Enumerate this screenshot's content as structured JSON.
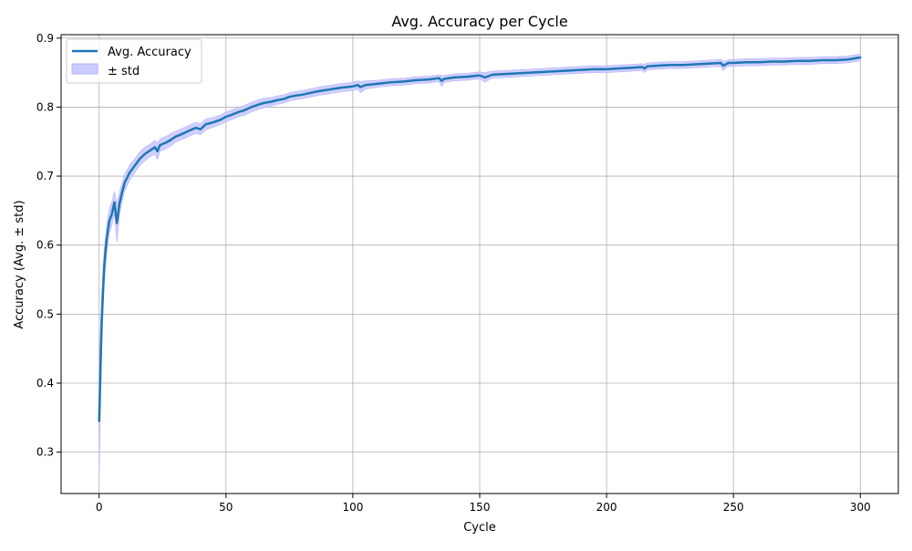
{
  "chart_data": {
    "type": "line",
    "title": "Avg. Accuracy per Cycle",
    "xlabel": "Cycle",
    "ylabel": "Accuracy (Avg. ± std)",
    "xlim": [
      -15,
      315
    ],
    "ylim": [
      0.24,
      0.905
    ],
    "xticks": [
      0,
      50,
      100,
      150,
      200,
      250,
      300
    ],
    "yticks": [
      0.3,
      0.4,
      0.5,
      0.6,
      0.7,
      0.8,
      0.9
    ],
    "grid": true,
    "legend_position": "top-left",
    "colors": {
      "line": "#1f77b4",
      "band_fill": "#ccccff",
      "band_edge": "#b3b3ff",
      "grid": "#b0b0b0"
    },
    "series": [
      {
        "name": "Avg. Accuracy",
        "kind": "line",
        "x": [
          0,
          1,
          2,
          3,
          4,
          5,
          6,
          7,
          8,
          9,
          10,
          12,
          14,
          16,
          18,
          20,
          22,
          23,
          24,
          26,
          28,
          30,
          32,
          35,
          38,
          40,
          42,
          45,
          48,
          50,
          53,
          55,
          57,
          60,
          63,
          65,
          68,
          70,
          73,
          75,
          78,
          80,
          85,
          88,
          90,
          95,
          100,
          102,
          103,
          105,
          110,
          115,
          120,
          125,
          130,
          134,
          135,
          136,
          140,
          145,
          150,
          152,
          155,
          160,
          165,
          170,
          175,
          180,
          185,
          190,
          195,
          200,
          205,
          210,
          214,
          215,
          216,
          220,
          225,
          230,
          235,
          240,
          245,
          246,
          247,
          248,
          250,
          255,
          260,
          265,
          270,
          275,
          280,
          285,
          290,
          295,
          300
        ],
        "y": [
          0.345,
          0.49,
          0.57,
          0.61,
          0.635,
          0.645,
          0.662,
          0.632,
          0.66,
          0.676,
          0.69,
          0.705,
          0.715,
          0.725,
          0.732,
          0.737,
          0.742,
          0.736,
          0.745,
          0.748,
          0.752,
          0.757,
          0.76,
          0.765,
          0.77,
          0.768,
          0.775,
          0.778,
          0.782,
          0.786,
          0.79,
          0.793,
          0.795,
          0.8,
          0.804,
          0.806,
          0.808,
          0.81,
          0.812,
          0.815,
          0.817,
          0.818,
          0.822,
          0.824,
          0.825,
          0.828,
          0.83,
          0.832,
          0.829,
          0.832,
          0.834,
          0.836,
          0.837,
          0.839,
          0.84,
          0.842,
          0.838,
          0.841,
          0.843,
          0.844,
          0.846,
          0.843,
          0.847,
          0.848,
          0.849,
          0.85,
          0.851,
          0.852,
          0.853,
          0.854,
          0.855,
          0.855,
          0.856,
          0.857,
          0.858,
          0.856,
          0.859,
          0.86,
          0.861,
          0.861,
          0.862,
          0.863,
          0.864,
          0.86,
          0.862,
          0.864,
          0.864,
          0.865,
          0.865,
          0.866,
          0.866,
          0.867,
          0.867,
          0.868,
          0.868,
          0.869,
          0.872
        ]
      },
      {
        "name": "± std",
        "kind": "band",
        "std": [
          0.08,
          0.04,
          0.025,
          0.02,
          0.018,
          0.017,
          0.016,
          0.028,
          0.016,
          0.014,
          0.012,
          0.011,
          0.01,
          0.01,
          0.01,
          0.009,
          0.01,
          0.012,
          0.009,
          0.009,
          0.009,
          0.008,
          0.008,
          0.008,
          0.008,
          0.008,
          0.008,
          0.007,
          0.007,
          0.007,
          0.007,
          0.007,
          0.007,
          0.007,
          0.007,
          0.007,
          0.006,
          0.006,
          0.006,
          0.006,
          0.006,
          0.006,
          0.006,
          0.006,
          0.006,
          0.006,
          0.006,
          0.006,
          0.008,
          0.006,
          0.005,
          0.005,
          0.005,
          0.005,
          0.005,
          0.005,
          0.008,
          0.005,
          0.005,
          0.005,
          0.005,
          0.007,
          0.005,
          0.005,
          0.005,
          0.005,
          0.005,
          0.005,
          0.005,
          0.005,
          0.005,
          0.005,
          0.005,
          0.005,
          0.005,
          0.006,
          0.005,
          0.005,
          0.005,
          0.005,
          0.005,
          0.005,
          0.005,
          0.007,
          0.005,
          0.005,
          0.005,
          0.005,
          0.005,
          0.005,
          0.005,
          0.005,
          0.005,
          0.005,
          0.005,
          0.005,
          0.005
        ]
      }
    ]
  }
}
